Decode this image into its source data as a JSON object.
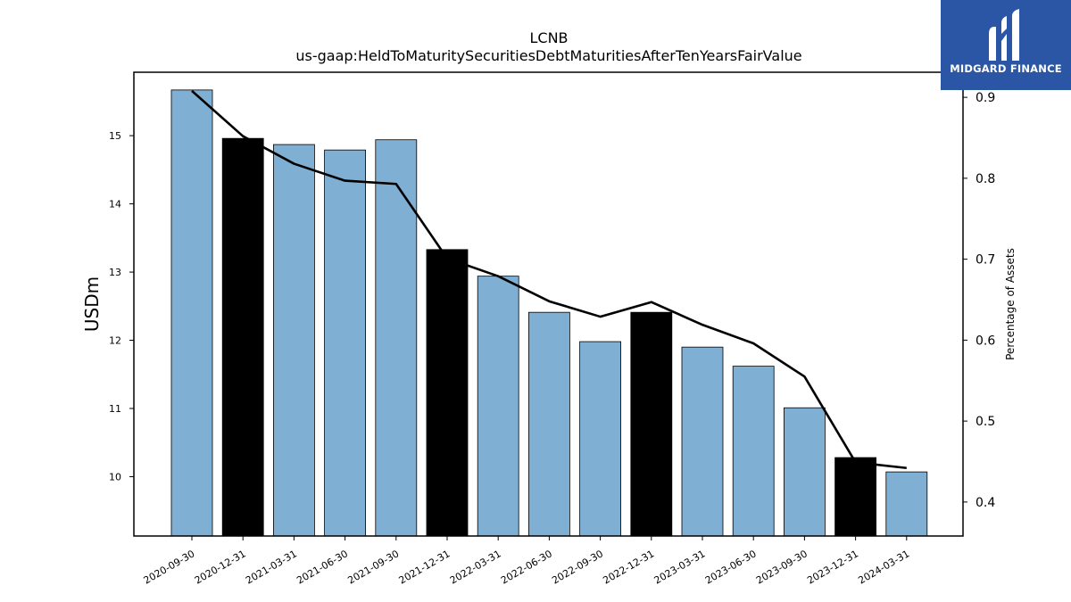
{
  "chart_data": {
    "type": "bar",
    "title": "LCNB",
    "subtitle": "us-gaap:HeldToMaturitySecuritiesDebtMaturitiesAfterTenYearsFairValue",
    "ylabel": "USDm",
    "y2label": "Percentage of Assets",
    "categories": [
      "2020-09-30",
      "2020-12-31",
      "2021-03-31",
      "2021-06-30",
      "2021-09-30",
      "2021-12-31",
      "2022-03-31",
      "2022-06-30",
      "2022-09-30",
      "2022-12-31",
      "2023-03-31",
      "2023-06-30",
      "2023-09-30",
      "2023-12-31",
      "2024-03-31"
    ],
    "values": [
      15.67,
      14.96,
      14.87,
      14.79,
      14.94,
      13.33,
      12.94,
      12.41,
      11.98,
      12.41,
      11.9,
      11.62,
      11.01,
      10.28,
      10.07
    ],
    "highlight": [
      false,
      true,
      false,
      false,
      false,
      true,
      false,
      false,
      false,
      true,
      false,
      false,
      false,
      true,
      false
    ],
    "line_values": [
      0.908,
      0.852,
      0.818,
      0.797,
      0.793,
      0.701,
      0.679,
      0.648,
      0.629,
      0.647,
      0.619,
      0.596,
      0.555,
      0.449,
      0.442
    ],
    "ylim": [
      9.13,
      15.93
    ],
    "y2lim": [
      0.358,
      0.931
    ],
    "yticks": [
      10,
      11,
      12,
      13,
      14,
      15
    ],
    "y2ticks": [
      0.4,
      0.5,
      0.6,
      0.7,
      0.8,
      0.9
    ],
    "colors": {
      "bar": "#7fafd3",
      "highlight": "#000000",
      "line": "#000000"
    },
    "grid": false
  },
  "logo": {
    "text": "MIDGARD FINANCE",
    "icon": "midgard-logo-icon"
  }
}
